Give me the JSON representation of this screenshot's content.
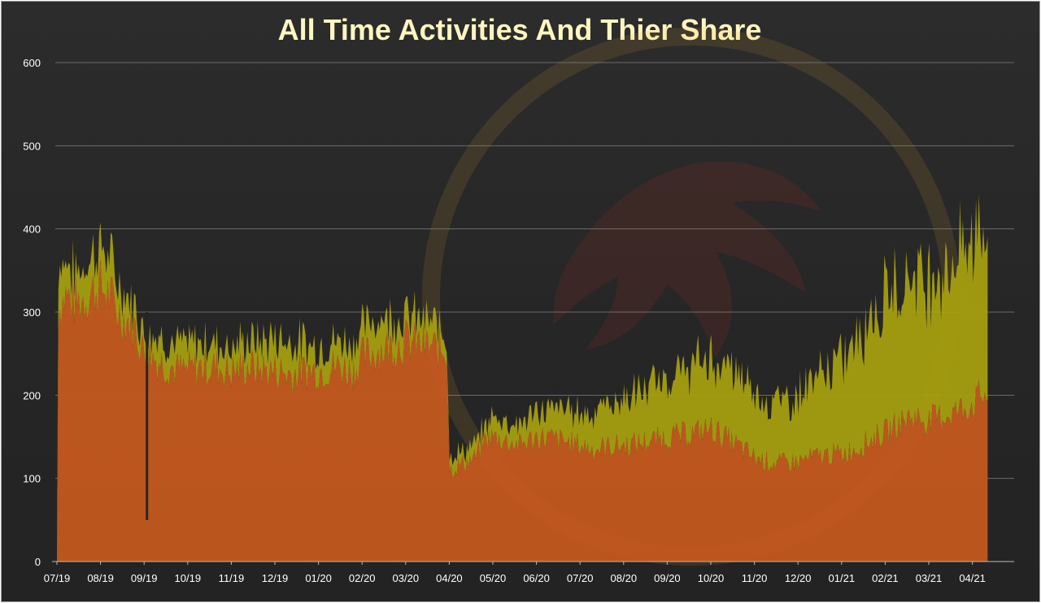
{
  "chart_data": {
    "type": "area",
    "title": "All Time Activities And Thier Share",
    "xlabel": "",
    "ylabel": "",
    "ylim": [
      0,
      600
    ],
    "y_ticks": [
      "0",
      "100",
      "200",
      "300",
      "400",
      "500",
      "600"
    ],
    "x_ticks": [
      "07/19",
      "08/19",
      "09/19",
      "10/19",
      "11/19",
      "12/19",
      "01/20",
      "02/20",
      "03/20",
      "04/20",
      "05/20",
      "06/20",
      "07/20",
      "08/20",
      "09/20",
      "10/20",
      "11/20",
      "12/20",
      "01/21",
      "02/21",
      "03/21",
      "04/21"
    ],
    "grid": true,
    "legend": "none",
    "stacked": true,
    "colors": {
      "bottom": "#c4581f",
      "top": "#a8a20e",
      "background": "#262626",
      "title": "#fff6c0"
    },
    "x": [
      0,
      0.2,
      0.4,
      0.6,
      0.8,
      1,
      1.2,
      1.4,
      1.6,
      1.8,
      2,
      2.2,
      2.4,
      2.6,
      2.8,
      3,
      3.4,
      3.8,
      4,
      4.4,
      4.8,
      5,
      5.4,
      5.8,
      6,
      6.4,
      6.8,
      7,
      7.4,
      7.8,
      8,
      8.4,
      8.8,
      8.95,
      9,
      9.2,
      9.4,
      9.6,
      9.8,
      10,
      10.3,
      10.6,
      11,
      11.3,
      11.6,
      12,
      12.3,
      12.6,
      13,
      13.3,
      13.6,
      14,
      14.3,
      14.6,
      15,
      15.3,
      15.6,
      16,
      16.3,
      16.6,
      17,
      17.3,
      17.6,
      18,
      18.3,
      18.6,
      19,
      19.3,
      19.6,
      20,
      20.3,
      20.6,
      21,
      21.2,
      21.35
    ],
    "series": [
      {
        "values": [
          300,
          320,
          310,
          315,
          325,
          330,
          320,
          300,
          290,
          280,
          250,
          245,
          240,
          235,
          230,
          230,
          235,
          232,
          228,
          235,
          230,
          230,
          225,
          230,
          230,
          235,
          230,
          245,
          255,
          260,
          265,
          260,
          255,
          255,
          110,
          115,
          120,
          125,
          145,
          150,
          145,
          140,
          150,
          148,
          145,
          140,
          135,
          138,
          140,
          142,
          145,
          150,
          152,
          155,
          160,
          150,
          140,
          125,
          120,
          118,
          120,
          125,
          128,
          130,
          135,
          145,
          155,
          165,
          175,
          170,
          175,
          180,
          190,
          200,
          200
        ]
      },
      {
        "values": [
          60,
          40,
          35,
          40,
          45,
          50,
          45,
          35,
          30,
          25,
          25,
          30,
          30,
          30,
          30,
          30,
          30,
          30,
          30,
          30,
          35,
          40,
          40,
          30,
          30,
          30,
          35,
          35,
          40,
          35,
          30,
          30,
          25,
          20,
          20,
          15,
          15,
          15,
          15,
          25,
          25,
          25,
          30,
          35,
          40,
          40,
          45,
          50,
          55,
          60,
          65,
          70,
          75,
          80,
          85,
          85,
          85,
          80,
          75,
          75,
          80,
          90,
          100,
          110,
          130,
          150,
          160,
          170,
          175,
          170,
          175,
          185,
          195,
          210,
          210
        ]
      }
    ]
  }
}
